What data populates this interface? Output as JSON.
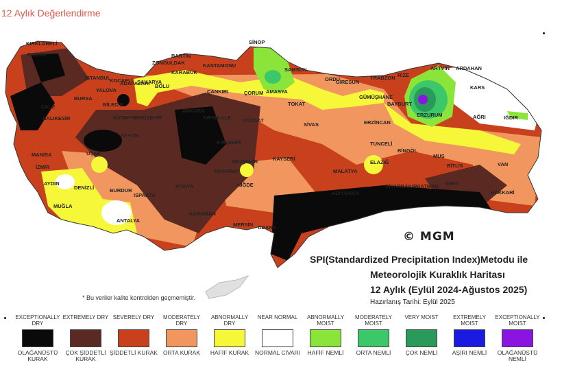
{
  "page_title": "12 Aylık Değerlendirme",
  "map_credit": "© MGM",
  "map_title": {
    "line1": "SPI(Standardized Precipitation Index)Metodu ile",
    "line2": "Meteorolojik Kuraklık Haritası",
    "line3": "12 Aylık (Eylül 2024-Ağustos 2025)",
    "date": "Hazırlanış Tarihi: Eylül 2025"
  },
  "footnote": "* Bu veriler kalite kontrolden geçmemiştir.",
  "colors": {
    "exceptionally_dry": "#0a0a0a",
    "extremely_dry": "#5a2a22",
    "severely_dry": "#c8401c",
    "moderately_dry": "#f0965e",
    "abnormally_dry": "#f7f73a",
    "near_normal": "#ffffff",
    "abnormally_moist": "#8be43a",
    "moderately_moist": "#3cc76a",
    "very_moist": "#2a9a5a",
    "extremely_moist": "#1a1ae0",
    "exceptionally_moist": "#8a14e0"
  },
  "legend": [
    {
      "en": "EXCEPTIONALLY DRY",
      "tr": "OLAĞANÜSTÜ KURAK",
      "color": "#0a0a0a"
    },
    {
      "en": "EXTREMELY DRY",
      "tr": "ÇOK ŞİDDETLİ KURAK",
      "color": "#5a2a22"
    },
    {
      "en": "SEVERELY DRY",
      "tr": "ŞİDDETLİ KURAK",
      "color": "#c8401c"
    },
    {
      "en": "MODERATELY DRY",
      "tr": "ORTA KURAK",
      "color": "#f0965e"
    },
    {
      "en": "ABNORMALLY DRY",
      "tr": "HAFİF KURAK",
      "color": "#f7f73a"
    },
    {
      "en": "NEAR NORMAL",
      "tr": "NORMAL CİVARI",
      "color": "#ffffff"
    },
    {
      "en": "ABNORMALLY MOIST",
      "tr": "HAFİF NEMLİ",
      "color": "#8be43a"
    },
    {
      "en": "MODERATELY MOIST",
      "tr": "ORTA NEMLİ",
      "color": "#3cc76a"
    },
    {
      "en": "VERY MOIST",
      "tr": "ÇOK NEMLİ",
      "color": "#2a9a5a"
    },
    {
      "en": "EXTREMELY MOIST",
      "tr": "AŞIRI NEMLİ",
      "color": "#1a1ae0"
    },
    {
      "en": "EXCEPTIONALLY MOIST",
      "tr": "OLAĞANÜSTÜ NEMLİ",
      "color": "#8a14e0"
    }
  ],
  "cities": {
    "kirklareli": "KIRKLARELİ",
    "edirne": "EDİRNE",
    "istanbul": "İSTANBUL",
    "bartin": "BARTIN",
    "zonguldak": "ZONGULDAK",
    "karabuk": "KARABÜK",
    "kastamonu": "KASTAMONU",
    "sinop": "SİNOP",
    "samsun": "SAMSUN",
    "amasya": "AMASYA",
    "ordu": "ORDU",
    "giresun": "GİRESUN",
    "trabzon": "TRABZON",
    "rize": "RİZE",
    "artvin": "ARTVİN",
    "ardahan": "ARDAHAN",
    "kars": "KARS",
    "gumushane": "GÜMÜŞHANE",
    "bayburt": "BAYBURT",
    "erzurum": "ERZURUM",
    "agri": "AĞRI",
    "igdir": "IĞDIR",
    "adapazari": "ADAPAZARI",
    "bolu": "BOLU",
    "cankiri": "ÇANKIRI",
    "corum": "ÇORUM",
    "tokat": "TOKAT",
    "sivas": "SİVAS",
    "erzincan": "ERZİNCAN",
    "tunceli": "TUNCELİ",
    "bingol": "BİNGÖL",
    "mus": "MUŞ",
    "bitlis": "BİTLİS",
    "van": "VAN",
    "hakkari": "HAKKARİ",
    "siirt": "SİİRT",
    "batman": "BATMAN",
    "diyarbakir": "DİYARBAKIR",
    "elazig": "ELAZIĞ",
    "malatya": "MALATYA",
    "adiyaman": "ADIYAMAN",
    "kayseri": "KAYSERİ",
    "nevsehir": "NEVŞEHİR",
    "nigde": "NİĞDE",
    "aksaray": "AKSARAY",
    "kirsehir": "KIRŞEHİR",
    "kirikkale": "KIRIKKALE",
    "ankara": "ANKARA",
    "yozgat": "YOZGAT",
    "eskisehir": "ESKİŞEHİR",
    "kutahya": "KÜTAHYA",
    "bilecik": "BİLECİK",
    "balikesir": "BALIKESİR",
    "manisa": "MANİSA",
    "izmir": "İZMİR",
    "aydin": "AYDIN",
    "denizli": "DENİZLİ",
    "mugla": "MUĞLA",
    "usak": "UŞAK",
    "afyon": "AFYON",
    "burdur": "BURDUR",
    "isparta": "ISPARTA",
    "antalya": "ANTALYA",
    "konya": "KONYA",
    "karaman": "KARAMAN",
    "mersin": "MERSİN",
    "adana": "ADANA",
    "bursa": "BURSA",
    "yalova": "YALOVA",
    "kocaeli": "KOCAELİ",
    "sakarya": "SAKARYA",
    "cale": "ÇALE"
  }
}
